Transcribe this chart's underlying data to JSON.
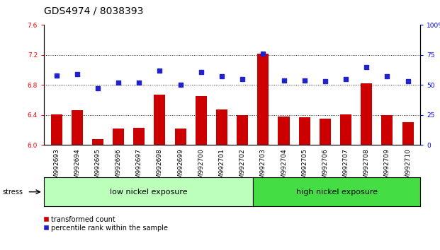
{
  "title": "GDS4974 / 8038393",
  "samples": [
    "GSM992693",
    "GSM992694",
    "GSM992695",
    "GSM992696",
    "GSM992697",
    "GSM992698",
    "GSM992699",
    "GSM992700",
    "GSM992701",
    "GSM992702",
    "GSM992703",
    "GSM992704",
    "GSM992705",
    "GSM992706",
    "GSM992707",
    "GSM992708",
    "GSM992709",
    "GSM992710"
  ],
  "transformed_count": [
    6.41,
    6.46,
    6.08,
    6.22,
    6.23,
    6.67,
    6.22,
    6.65,
    6.47,
    6.4,
    7.22,
    6.38,
    6.37,
    6.35,
    6.41,
    6.82,
    6.4,
    6.3
  ],
  "percentile_rank": [
    58,
    59,
    47,
    52,
    52,
    62,
    50,
    61,
    57,
    55,
    76,
    54,
    54,
    53,
    55,
    65,
    57,
    53
  ],
  "ylim_left": [
    6.0,
    7.6
  ],
  "ylim_right": [
    0,
    100
  ],
  "yticks_left": [
    6.0,
    6.4,
    6.8,
    7.2,
    7.6
  ],
  "yticks_right": [
    0,
    25,
    50,
    75,
    100
  ],
  "bar_color": "#cc0000",
  "dot_color": "#2222cc",
  "group1_label": "low nickel exposure",
  "group2_label": "high nickel exposure",
  "group1_color": "#bbffbb",
  "group2_color": "#44dd44",
  "group1_count": 10,
  "stress_label": "stress",
  "legend_bar_label": "transformed count",
  "legend_dot_label": "percentile rank within the sample",
  "dotted_line_color": "#222222",
  "bar_width": 0.55,
  "title_fontsize": 10,
  "tick_fontsize": 6.5,
  "label_fontsize": 8
}
